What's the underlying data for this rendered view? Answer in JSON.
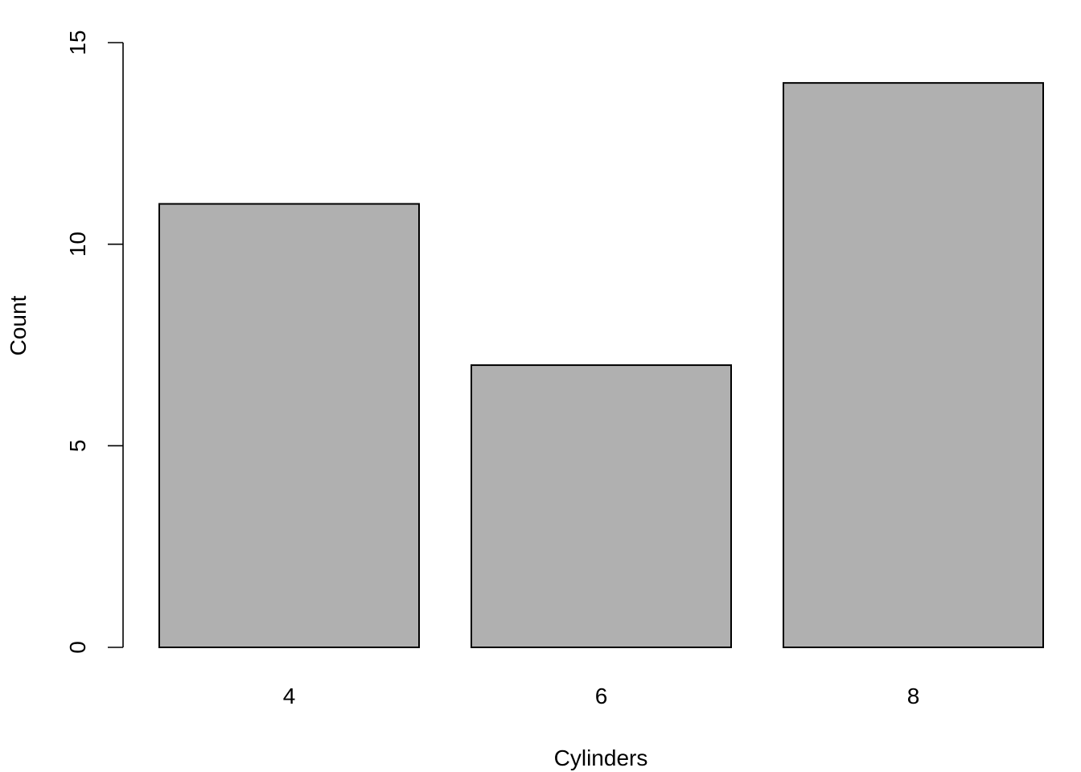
{
  "chart_data": {
    "type": "bar",
    "title": "",
    "xlabel": "Cylinders",
    "ylabel": "Count",
    "categories": [
      "4",
      "6",
      "8"
    ],
    "values": [
      11,
      7,
      14
    ],
    "ylim": [
      0,
      15
    ],
    "yticks": [
      0,
      5,
      10,
      15
    ],
    "grid": false,
    "legend": "none",
    "colors": {
      "bar_fill": "#b0b0b0",
      "bar_stroke": "#000000",
      "axis": "#000000"
    }
  }
}
